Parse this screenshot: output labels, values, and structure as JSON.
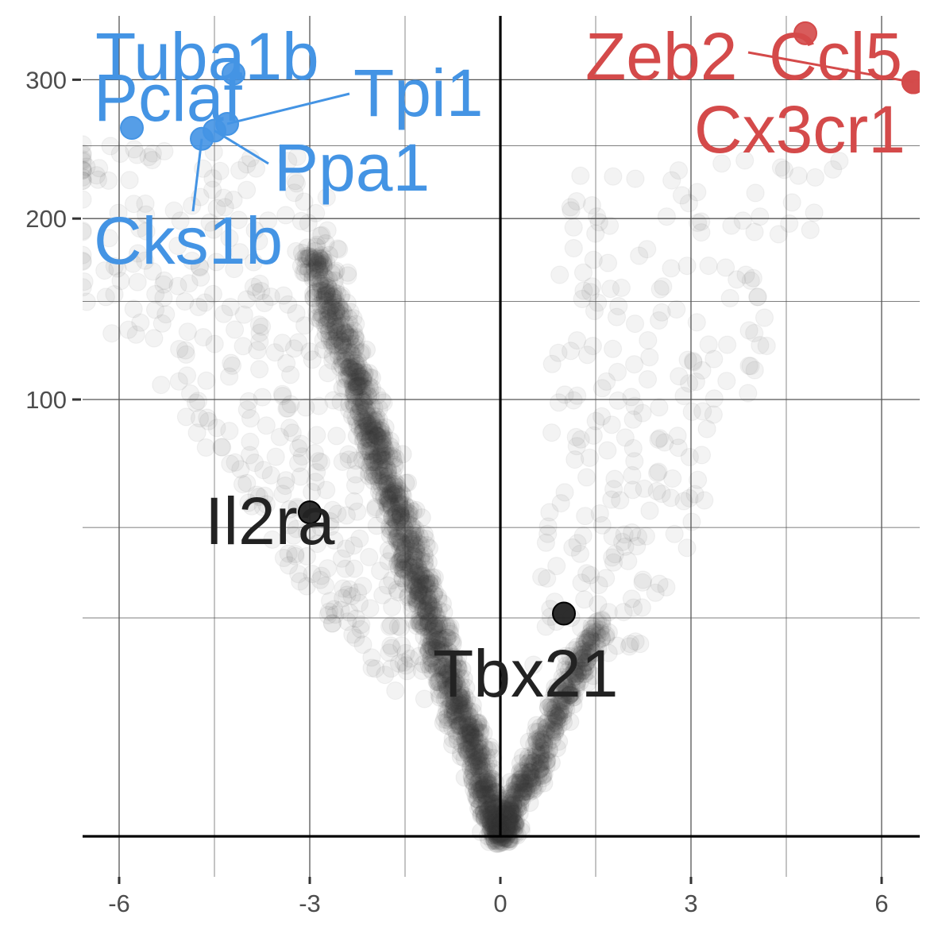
{
  "chart_data": {
    "type": "scatter",
    "title": "",
    "xlabel": "",
    "ylabel": "",
    "xlim": [
      -6.6,
      6.6
    ],
    "y_scale": "sqrt",
    "ylim": [
      0,
      340
    ],
    "x_ticks": [
      -6,
      -3,
      0,
      3,
      6
    ],
    "x_tick_labels": [
      "-6",
      "-3",
      "0",
      "3",
      "6"
    ],
    "y_ticks": [
      100,
      200,
      300
    ],
    "y_tick_labels": [
      "100",
      "200",
      "300"
    ],
    "grid": true,
    "legend": "none",
    "colors": {
      "background_points": "#3a3a3a",
      "down_highlight": "#4494e4",
      "up_highlight": "#d44a4a",
      "neutral_highlight": "#222222",
      "axis": "#000000",
      "grid": "#555555"
    },
    "series": [
      {
        "group": "down",
        "color": "#4494e4",
        "points": [
          {
            "label": "Tuba1b",
            "x": -4.2,
            "y": 305
          },
          {
            "label": "Pclaf",
            "x": -5.8,
            "y": 263
          },
          {
            "label": "Tpi1",
            "x": -4.3,
            "y": 266
          },
          {
            "label": "Ppa1",
            "x": -4.5,
            "y": 261
          },
          {
            "label": "Cks1b",
            "x": -4.7,
            "y": 255
          }
        ]
      },
      {
        "group": "up",
        "color": "#d44a4a",
        "points": [
          {
            "label": "Zeb2",
            "x": 4.8,
            "y": 338
          },
          {
            "label": "Ccl5",
            "x": 6.5,
            "y": 298
          },
          {
            "label": "Cx3cr1",
            "x": 6.5,
            "y": 298
          }
        ]
      },
      {
        "group": "neutral",
        "color": "#222222",
        "points": [
          {
            "label": "Il2ra",
            "x": -3.0,
            "y": 55
          },
          {
            "label": "Tbx21",
            "x": 1.0,
            "y": 26
          }
        ]
      }
    ],
    "labels": [
      {
        "text": "Tuba1b",
        "group": "down"
      },
      {
        "text": "Pclaf",
        "group": "down"
      },
      {
        "text": "Tpi1",
        "group": "down"
      },
      {
        "text": "Ppa1",
        "group": "down"
      },
      {
        "text": "Cks1b",
        "group": "down"
      },
      {
        "text": "Zeb2",
        "group": "up"
      },
      {
        "text": "Ccl5",
        "group": "up"
      },
      {
        "text": "Cx3cr1",
        "group": "up"
      },
      {
        "text": "Il2ra",
        "group": "neutral"
      },
      {
        "text": "Tbx21",
        "group": "neutral"
      }
    ]
  }
}
